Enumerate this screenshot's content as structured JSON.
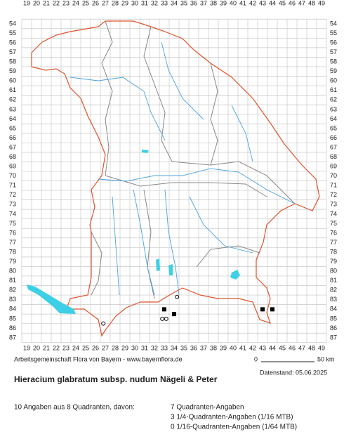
{
  "map": {
    "columns": [
      19,
      20,
      21,
      22,
      23,
      24,
      25,
      26,
      27,
      28,
      29,
      30,
      31,
      32,
      33,
      34,
      35,
      36,
      37,
      38,
      39,
      40,
      41,
      42,
      43,
      44,
      45,
      46,
      47,
      48,
      49
    ],
    "rows": [
      54,
      55,
      56,
      57,
      58,
      59,
      60,
      61,
      62,
      63,
      64,
      65,
      66,
      67,
      68,
      69,
      70,
      71,
      72,
      73,
      74,
      75,
      76,
      77,
      78,
      79,
      80,
      81,
      82,
      83,
      84,
      85,
      86,
      87
    ],
    "records": [
      {
        "marker": "square",
        "column": 33,
        "row": 84
      },
      {
        "marker": "square",
        "column": 34,
        "row": 84.5
      },
      {
        "marker": "square",
        "column": 43,
        "row": 84
      },
      {
        "marker": "square",
        "column": 44,
        "row": 84
      },
      {
        "marker": "circle",
        "column": 34.3,
        "row": 82.7
      },
      {
        "marker": "circle",
        "column": 32.8,
        "row": 85
      },
      {
        "marker": "circle",
        "column": 33.2,
        "row": 85
      },
      {
        "marker": "circle",
        "column": 26.8,
        "row": 85.5
      }
    ]
  },
  "footer": {
    "credit": "Arbeitsgemeinschaft Flora von Bayern - www.bayernflora.de",
    "scale_start": "0",
    "scale_end": "50 km",
    "date": "Datenstand: 05.06.2025"
  },
  "title": "Hieracium glabratum subsp. nudum Nägeli & Peter",
  "stats": {
    "summary": "10 Angaben aus 8 Quadranten, davon:",
    "lines": [
      "7 Quadranten-Angaben",
      "3 1/4-Quadranten-Angaben (1/16 MTB)",
      "0 1/16-Quadranten-Angaben (1/64 MTB)"
    ]
  }
}
